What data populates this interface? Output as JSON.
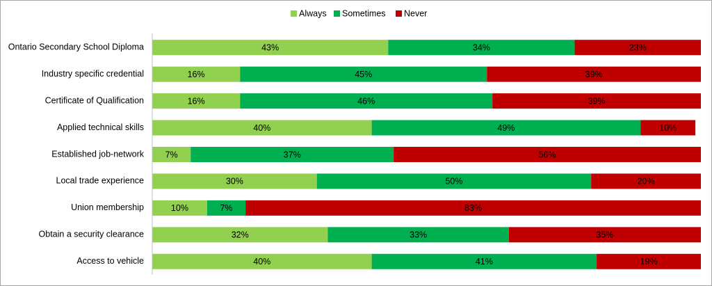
{
  "chart_data": {
    "type": "stacked-bar-horizontal",
    "categories": [
      "Ontario Secondary School Diploma",
      "Industry specific credential",
      "Certificate of Qualification",
      "Applied technical skills",
      "Established job-network",
      "Local trade experience",
      "Union membership",
      "Obtain a security clearance",
      "Access to vehicle"
    ],
    "series": [
      {
        "name": "Always",
        "color": "#92d050",
        "values": [
          43,
          16,
          16,
          40,
          7,
          30,
          10,
          32,
          40
        ],
        "value_labels": [
          "43%",
          "16%",
          "16%",
          "40%",
          "7%",
          "30%",
          "10%",
          "32%",
          "40%"
        ]
      },
      {
        "name": "Sometimes",
        "color": "#00b050",
        "values": [
          34,
          45,
          46,
          49,
          37,
          50,
          7,
          33,
          41
        ],
        "value_labels": [
          "34%",
          "45%",
          "46%",
          "49%",
          "37%",
          "50%",
          "7%",
          "33%",
          "41%"
        ]
      },
      {
        "name": "Never",
        "color": "#c00000",
        "values": [
          23,
          39,
          39,
          10,
          56,
          20,
          83,
          35,
          19
        ],
        "value_labels": [
          "23%",
          "39%",
          "39%",
          "10%",
          "56%",
          "20%",
          "83%",
          "35%",
          "19%"
        ]
      }
    ],
    "xlim": [
      0,
      100
    ],
    "legend": "top"
  }
}
